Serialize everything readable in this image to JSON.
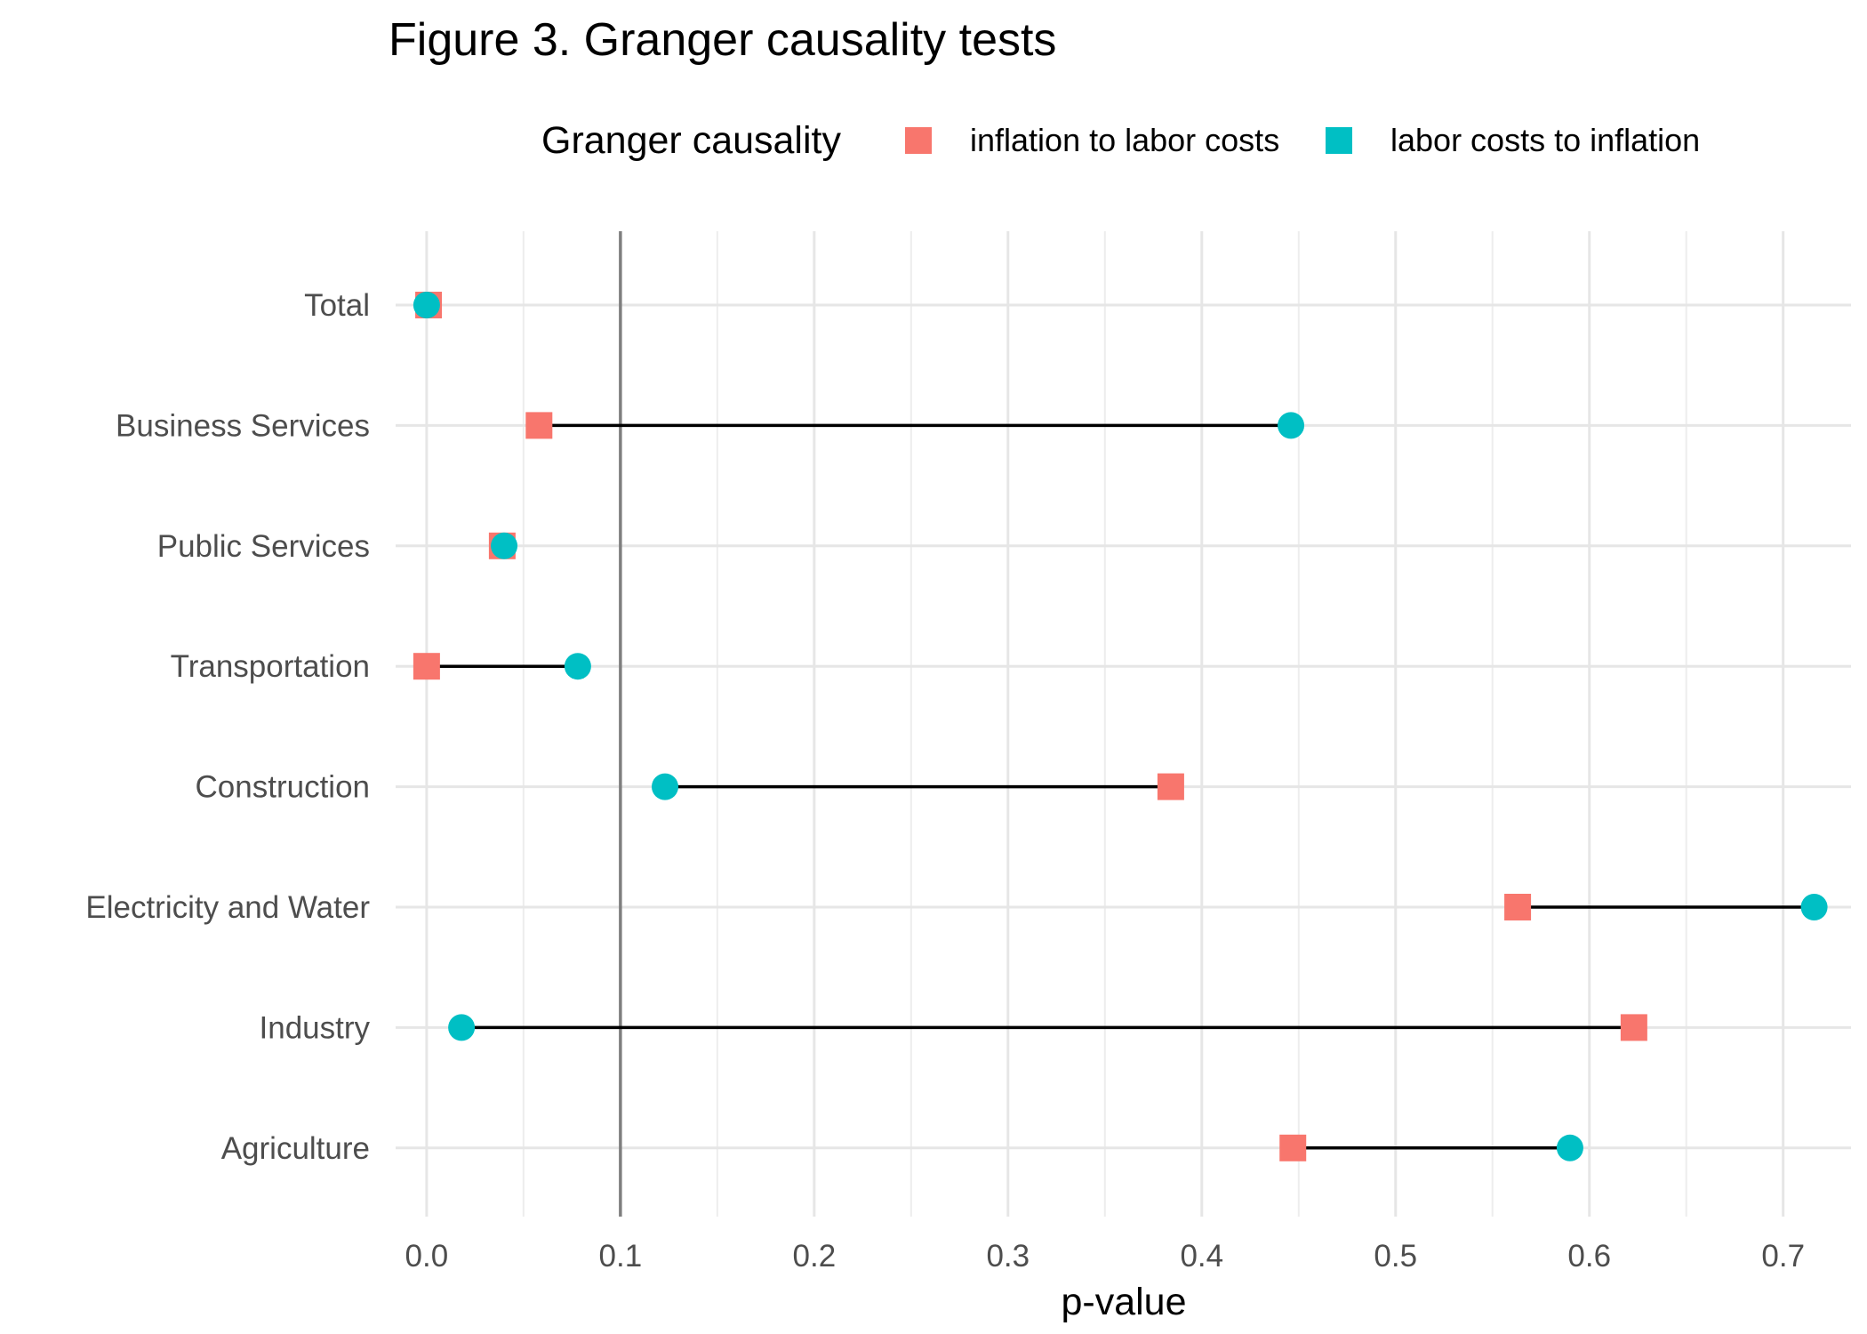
{
  "chart_data": {
    "type": "dumbbell",
    "title": "Figure 3. Granger causality tests",
    "xlabel": "p-value",
    "ylabel": "",
    "xlim": [
      -0.016,
      0.735
    ],
    "xticks": [
      "0.0",
      "0.1",
      "0.2",
      "0.3",
      "0.4",
      "0.5",
      "0.6",
      "0.7"
    ],
    "xtick_values": [
      0.0,
      0.1,
      0.2,
      0.3,
      0.4,
      0.5,
      0.6,
      0.7
    ],
    "reference_line": 0.1,
    "grid": true,
    "legend": {
      "title": "Granger causality",
      "position": "top",
      "entries": [
        {
          "name": "inflation to labor costs",
          "color": "#F8766D",
          "shape": "square"
        },
        {
          "name": "labor costs to inflation",
          "color": "#00BFC4",
          "shape": "circle"
        }
      ]
    },
    "categories": [
      "Total",
      "Business Services",
      "Public Services",
      "Transportation",
      "Construction",
      "Electricity and Water",
      "Industry",
      "Agriculture"
    ],
    "series": [
      {
        "name": "inflation to labor costs",
        "values": [
          0.001,
          0.058,
          0.039,
          0.0,
          0.384,
          0.563,
          0.623,
          0.447
        ]
      },
      {
        "name": "labor costs to inflation",
        "values": [
          0.0,
          0.446,
          0.04,
          0.078,
          0.123,
          0.716,
          0.018,
          0.59
        ]
      }
    ]
  }
}
